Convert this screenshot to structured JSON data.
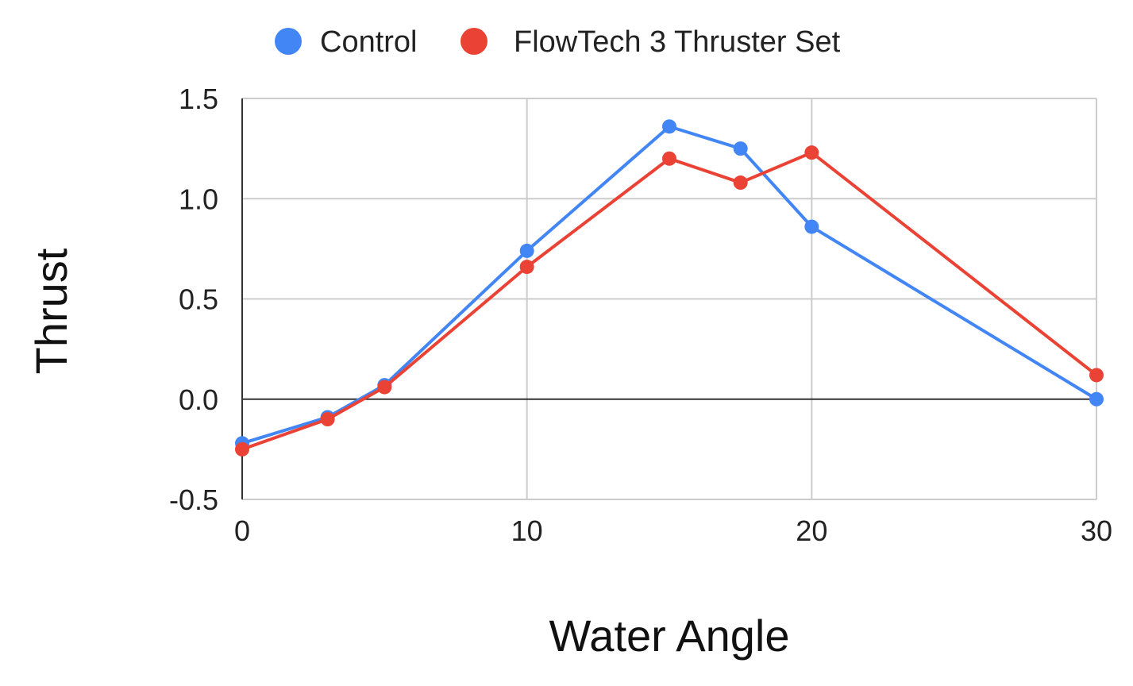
{
  "chart_data": {
    "type": "line",
    "xlabel": "Water Angle",
    "ylabel": "Thrust",
    "xlim": [
      0,
      30
    ],
    "ylim": [
      -0.5,
      1.5
    ],
    "xticks": [
      0,
      10,
      20,
      30
    ],
    "yticks": [
      -0.5,
      0.0,
      0.5,
      1.0,
      1.5
    ],
    "xtick_labels": [
      "0",
      "10",
      "20",
      "30"
    ],
    "ytick_labels": [
      "-0.5",
      "0.0",
      "0.5",
      "1.0",
      "1.5"
    ],
    "grid": true,
    "legend_position": "top",
    "series": [
      {
        "name": "Control",
        "color": "#4285F4",
        "x": [
          0,
          3,
          5,
          10,
          15,
          17.5,
          20,
          30
        ],
        "y": [
          -0.22,
          -0.09,
          0.07,
          0.74,
          1.36,
          1.25,
          0.86,
          0.0
        ]
      },
      {
        "name": "FlowTech 3 Thruster Set",
        "color": "#EA4335",
        "x": [
          0,
          3,
          5,
          10,
          15,
          17.5,
          20,
          30
        ],
        "y": [
          -0.25,
          -0.1,
          0.06,
          0.66,
          1.2,
          1.08,
          1.23,
          0.12
        ]
      }
    ]
  }
}
